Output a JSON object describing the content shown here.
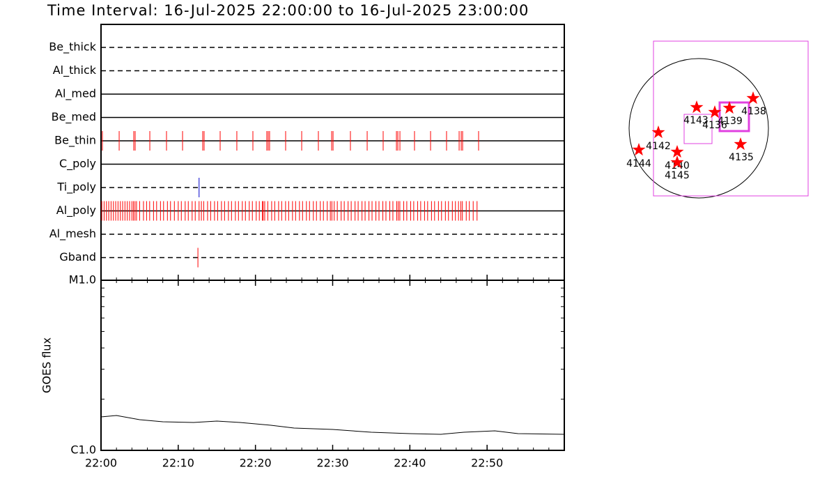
{
  "chart_data": [
    {
      "type": "event",
      "title": "Time Interval: 16-Jul-2025 22:00:00 to 16-Jul-2025 23:00:00",
      "xlim": [
        0,
        60
      ],
      "xticks": [
        {
          "value": 0,
          "label": "22:00"
        },
        {
          "value": 10,
          "label": "22:10"
        },
        {
          "value": 20,
          "label": "22:20"
        },
        {
          "value": 30,
          "label": "22:30"
        },
        {
          "value": 40,
          "label": "22:40"
        },
        {
          "value": 50,
          "label": "22:50"
        }
      ],
      "rows": [
        {
          "label": "Be_thick",
          "style": "dashed",
          "color": "#000000",
          "times": []
        },
        {
          "label": "Al_thick",
          "style": "dashed",
          "color": "#000000",
          "times": []
        },
        {
          "label": "Al_med",
          "style": "solid",
          "color": "#000000",
          "times": []
        },
        {
          "label": "Be_med",
          "style": "solid",
          "color": "#000000",
          "times": []
        },
        {
          "label": "Be_thin",
          "style": "solid",
          "color": "#ff0000",
          "times": [
            0.18,
            2.35,
            4.24,
            4.42,
            6.32,
            8.48,
            10.56,
            13.17,
            13.35,
            15.43,
            17.59,
            19.67,
            21.47,
            21.65,
            21.83,
            23.91,
            25.99,
            28.15,
            29.87,
            30.05,
            32.3,
            34.47,
            36.54,
            38.26,
            38.44,
            38.71,
            40.6,
            42.68,
            44.75,
            46.38,
            46.65,
            46.83,
            48.9
          ]
        },
        {
          "label": "C_poly",
          "style": "solid",
          "color": "#000000",
          "times": []
        },
        {
          "label": "Ti_poly",
          "style": "dashed",
          "color": "#0000cc",
          "times": [
            12.7
          ]
        },
        {
          "label": "Al_poly",
          "style": "solid",
          "color": "#ff0000",
          "times": [
            0.1,
            0.4,
            0.7,
            1.0,
            1.3,
            1.6,
            1.9,
            2.2,
            2.5,
            2.8,
            3.1,
            3.4,
            3.7,
            4.0,
            4.2,
            4.4,
            4.6,
            5.0,
            5.5,
            5.9,
            6.3,
            6.8,
            7.2,
            7.7,
            8.1,
            8.6,
            9.0,
            9.5,
            10.0,
            10.4,
            10.9,
            11.3,
            11.8,
            12.2,
            12.7,
            13.0,
            13.3,
            13.8,
            14.2,
            14.7,
            15.1,
            15.6,
            16.0,
            16.5,
            16.9,
            17.4,
            17.8,
            18.3,
            18.7,
            19.2,
            19.6,
            20.1,
            20.5,
            20.9,
            21.0,
            21.2,
            21.6,
            22.1,
            22.5,
            23.0,
            23.4,
            23.9,
            24.3,
            24.8,
            25.2,
            25.7,
            26.1,
            26.6,
            27.0,
            27.5,
            27.9,
            28.4,
            28.8,
            29.3,
            29.7,
            29.9,
            30.2,
            30.6,
            31.1,
            31.5,
            32.0,
            32.4,
            32.9,
            33.3,
            33.8,
            34.2,
            34.7,
            35.1,
            35.6,
            36.0,
            36.5,
            36.9,
            37.4,
            37.8,
            38.3,
            38.5,
            38.7,
            39.2,
            39.6,
            40.1,
            40.5,
            41.0,
            41.4,
            41.9,
            42.3,
            42.8,
            43.2,
            43.7,
            44.1,
            44.6,
            45.0,
            45.5,
            45.9,
            46.3,
            46.6,
            46.8,
            47.3,
            47.7,
            48.2,
            48.7
          ]
        },
        {
          "label": "Al_mesh",
          "style": "dashed",
          "color": "#000000",
          "times": []
        },
        {
          "label": "Gband",
          "style": "dashed",
          "color": "#ff0000",
          "times": [
            12.55
          ]
        }
      ]
    },
    {
      "type": "line",
      "ylabel": "GOES flux",
      "log": true,
      "xlim": [
        0,
        60
      ],
      "ylim": [
        1e-06,
        1e-05
      ],
      "yticks": [
        {
          "value": 1e-06,
          "label": "C1.0"
        },
        {
          "value": 1e-05,
          "label": "M1.0"
        }
      ],
      "color": "#000000",
      "x": [
        0,
        2,
        5,
        8,
        12,
        15,
        18,
        22,
        25,
        30,
        35,
        40,
        44,
        47,
        51,
        54,
        60
      ],
      "values": [
        1.573e-06,
        1.603e-06,
        1.515e-06,
        1.472e-06,
        1.458e-06,
        1.486e-06,
        1.458e-06,
        1.405e-06,
        1.352e-06,
        1.327e-06,
        1.278e-06,
        1.254e-06,
        1.242e-06,
        1.278e-06,
        1.302e-06,
        1.254e-06,
        1.242e-06
      ]
    },
    {
      "type": "map",
      "regions": [
        "4143",
        "4136",
        "4139",
        "4138",
        "4142",
        "4144",
        "4140",
        "4145",
        "4135"
      ]
    }
  ]
}
